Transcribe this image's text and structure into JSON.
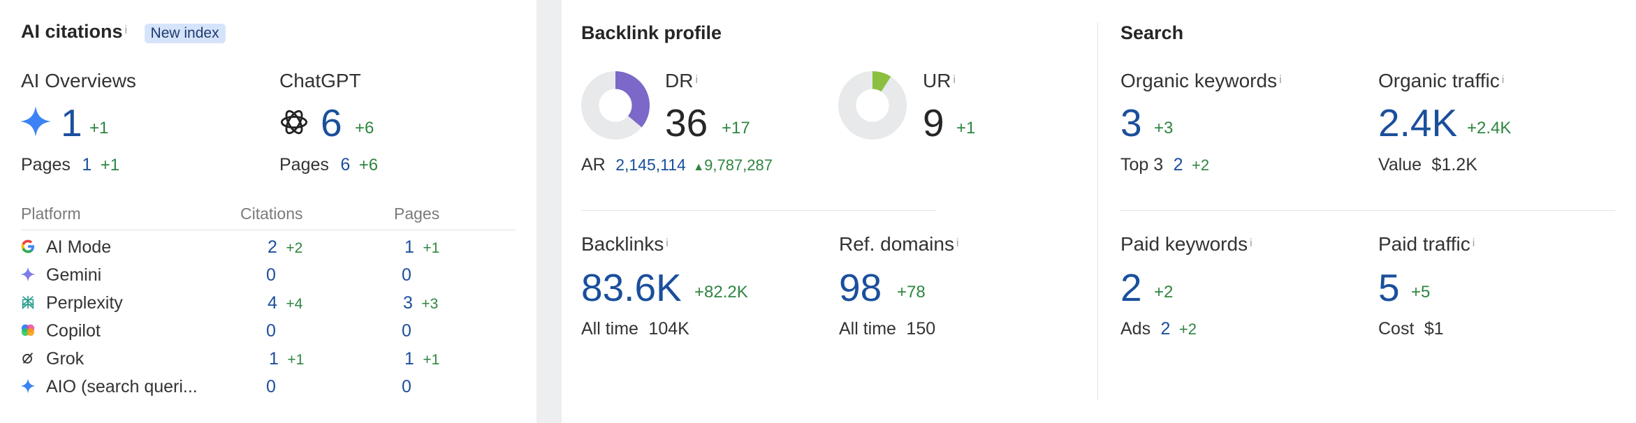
{
  "ai": {
    "title": "AI citations",
    "info": "i",
    "badge": "New index",
    "overviews": {
      "label": "AI Overviews",
      "value": "1",
      "delta": "+1",
      "pages_label": "Pages",
      "pages_value": "1",
      "pages_delta": "+1"
    },
    "chatgpt": {
      "label": "ChatGPT",
      "value": "6",
      "delta": "+6",
      "pages_label": "Pages",
      "pages_value": "6",
      "pages_delta": "+6"
    },
    "table": {
      "headers": [
        "Platform",
        "Citations",
        "Pages"
      ],
      "rows": [
        {
          "icon": "google-g-icon",
          "name": "AI Mode",
          "citations": "2",
          "citations_delta": "+2",
          "pages": "1",
          "pages_delta": "+1"
        },
        {
          "icon": "gemini-sparkle-icon",
          "name": "Gemini",
          "citations": "0",
          "citations_delta": "",
          "pages": "0",
          "pages_delta": ""
        },
        {
          "icon": "perplexity-icon",
          "name": "Perplexity",
          "citations": "4",
          "citations_delta": "+4",
          "pages": "3",
          "pages_delta": "+3"
        },
        {
          "icon": "copilot-icon",
          "name": "Copilot",
          "citations": "0",
          "citations_delta": "",
          "pages": "0",
          "pages_delta": ""
        },
        {
          "icon": "grok-icon",
          "name": "Grok",
          "citations": "1",
          "citations_delta": "+1",
          "pages": "1",
          "pages_delta": "+1"
        },
        {
          "icon": "aio-sparkle-icon",
          "name": "AIO (search queri...",
          "citations": "0",
          "citations_delta": "",
          "pages": "0",
          "pages_delta": ""
        }
      ]
    }
  },
  "backlink": {
    "title": "Backlink profile",
    "info": "i",
    "dr": {
      "label": "DR",
      "value": "36",
      "delta": "+17",
      "fraction": 0.36,
      "color": "#7b68c8"
    },
    "ur": {
      "label": "UR",
      "value": "9",
      "delta": "+1",
      "fraction": 0.09,
      "color": "#8cbf3f"
    },
    "ar": {
      "label": "AR",
      "value": "2,145,114",
      "delta": "9,787,287"
    },
    "backlinks": {
      "label": "Backlinks",
      "value": "83.6K",
      "delta": "+82.2K",
      "sub_label": "All time",
      "sub_value": "104K"
    },
    "ref_domains": {
      "label": "Ref. domains",
      "value": "98",
      "delta": "+78",
      "sub_label": "All time",
      "sub_value": "150"
    }
  },
  "search": {
    "title": "Search",
    "info": "i",
    "organic_keywords": {
      "label": "Organic keywords",
      "value": "3",
      "delta": "+3",
      "sub_label": "Top 3",
      "sub_value": "2",
      "sub_delta": "+2"
    },
    "organic_traffic": {
      "label": "Organic traffic",
      "value": "2.4K",
      "delta": "+2.4K",
      "sub_label": "Value",
      "sub_value": "$1.2K"
    },
    "paid_keywords": {
      "label": "Paid keywords",
      "value": "2",
      "delta": "+2",
      "sub_label": "Ads",
      "sub_value": "2",
      "sub_delta": "+2"
    },
    "paid_traffic": {
      "label": "Paid traffic",
      "value": "5",
      "delta": "+5",
      "sub_label": "Cost",
      "sub_value": "$1"
    }
  },
  "colors": {
    "accent": "#1a4f9c",
    "positive": "#2e8540",
    "donut_track": "#e8e9eb"
  }
}
